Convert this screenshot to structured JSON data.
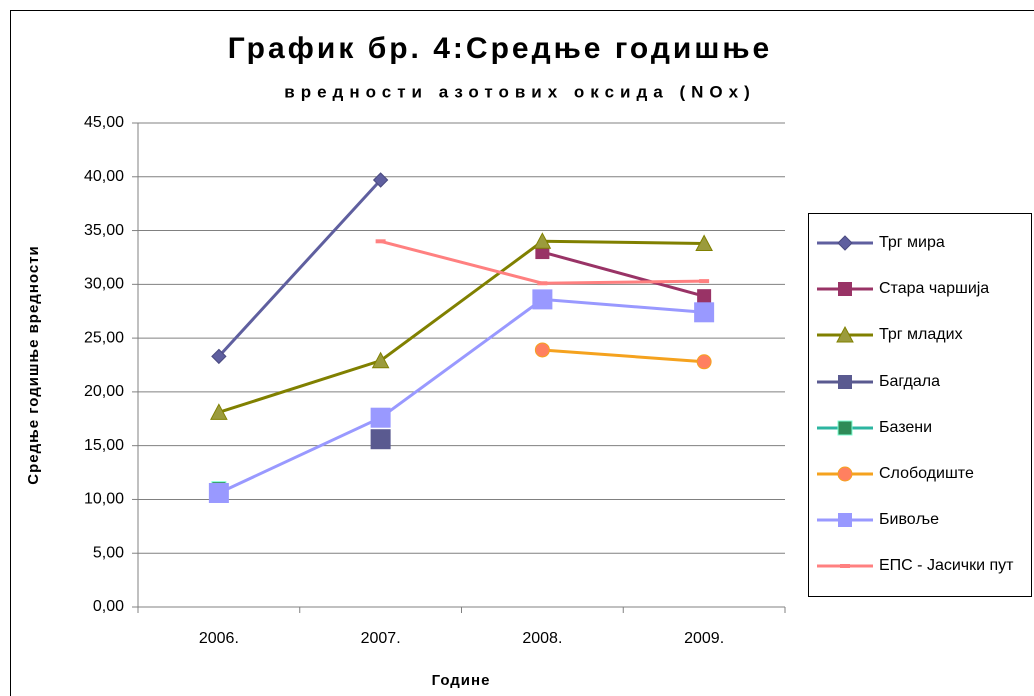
{
  "chart_data": {
    "type": "line",
    "title": "График бр. 4:Средње годишње",
    "subtitle": "вредности азотових оксида (NOx)",
    "y_label": "Средње годишње вредности",
    "x_label": "Године",
    "categories": [
      "2006.",
      "2007.",
      "2008.",
      "2009."
    ],
    "ylim": [
      0,
      45
    ],
    "yticks": [
      {
        "value": 0,
        "label": "0,00"
      },
      {
        "value": 5,
        "label": "5,00"
      },
      {
        "value": 10,
        "label": "10,00"
      },
      {
        "value": 15,
        "label": "15,00"
      },
      {
        "value": 20,
        "label": "20,00"
      },
      {
        "value": 25,
        "label": "25,00"
      },
      {
        "value": 30,
        "label": "30,00"
      },
      {
        "value": 35,
        "label": "35,00"
      },
      {
        "value": 40,
        "label": "40,00"
      },
      {
        "value": 45,
        "label": "45,00"
      }
    ],
    "grid": true,
    "legend": "right",
    "series": [
      {
        "name": "Трг мира",
        "color": "#5f5f9f",
        "marker": "diamond",
        "values": [
          23.3,
          39.7,
          null,
          null
        ]
      },
      {
        "name": "Стара чаршија",
        "color": "#993366",
        "marker": "square",
        "values": [
          null,
          null,
          33.0,
          28.9
        ]
      },
      {
        "name": "Трг младих",
        "color": "#808000",
        "marker": "triangle",
        "values": [
          18.1,
          22.9,
          34.0,
          33.8
        ]
      },
      {
        "name": "Багдала",
        "color": "#5a5a90",
        "marker": "bigsquare",
        "values": [
          null,
          15.6,
          null,
          null
        ]
      },
      {
        "name": "Базени",
        "color": "#2cb5a0",
        "marker": "star",
        "values": [
          11.0,
          null,
          null,
          null
        ]
      },
      {
        "name": "Слободиште",
        "color": "#f5a21e",
        "marker": "circle",
        "values": [
          null,
          null,
          23.9,
          22.8
        ]
      },
      {
        "name": "Бивоље",
        "color": "#9999ff",
        "marker": "bigsquare",
        "values": [
          10.6,
          17.6,
          28.6,
          27.4
        ]
      },
      {
        "name": "ЕПС - Јасички пут",
        "color": "#ff8080",
        "marker": "dash",
        "values": [
          null,
          34.0,
          30.1,
          30.3
        ]
      }
    ]
  }
}
